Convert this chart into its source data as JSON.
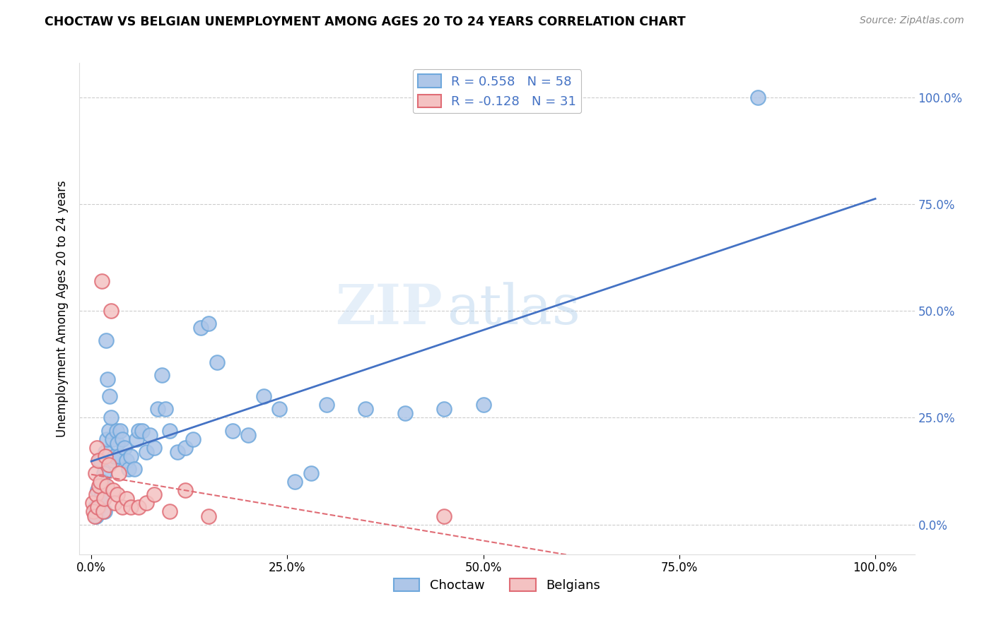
{
  "title": "CHOCTAW VS BELGIAN UNEMPLOYMENT AMONG AGES 20 TO 24 YEARS CORRELATION CHART",
  "source": "Source: ZipAtlas.com",
  "ylabel": "Unemployment Among Ages 20 to 24 years",
  "choctaw_color_face": "#aec6e8",
  "choctaw_color_edge": "#6fa8dc",
  "belgian_color_face": "#f4c2c2",
  "belgian_color_edge": "#e06c75",
  "choctaw_line_color": "#4472c4",
  "belgian_line_color": "#e06c75",
  "ytick_color": "#4472c4",
  "choctaw_R": 0.558,
  "choctaw_N": 58,
  "belgian_R": -0.128,
  "belgian_N": 31,
  "yticks": [
    0.0,
    0.25,
    0.5,
    0.75,
    1.0
  ],
  "ytick_labels": [
    "0.0%",
    "25.0%",
    "50.0%",
    "75.0%",
    "100.0%"
  ],
  "xticks": [
    0.0,
    0.25,
    0.5,
    0.75,
    1.0
  ],
  "xtick_labels": [
    "0.0%",
    "25.0%",
    "50.0%",
    "75.0%",
    "100.0%"
  ],
  "choctaw_x": [
    0.005,
    0.006,
    0.008,
    0.01,
    0.012,
    0.013,
    0.014,
    0.015,
    0.016,
    0.017,
    0.018,
    0.019,
    0.02,
    0.021,
    0.022,
    0.023,
    0.025,
    0.027,
    0.028,
    0.03,
    0.032,
    0.033,
    0.035,
    0.037,
    0.04,
    0.042,
    0.045,
    0.048,
    0.05,
    0.055,
    0.058,
    0.06,
    0.065,
    0.07,
    0.075,
    0.08,
    0.085,
    0.09,
    0.095,
    0.1,
    0.11,
    0.12,
    0.13,
    0.14,
    0.15,
    0.16,
    0.18,
    0.2,
    0.22,
    0.24,
    0.26,
    0.28,
    0.3,
    0.35,
    0.4,
    0.45,
    0.5,
    0.85
  ],
  "choctaw_y": [
    0.04,
    0.02,
    0.08,
    0.04,
    0.15,
    0.07,
    0.1,
    0.06,
    0.12,
    0.03,
    0.17,
    0.43,
    0.2,
    0.34,
    0.22,
    0.3,
    0.25,
    0.2,
    0.15,
    0.16,
    0.22,
    0.19,
    0.16,
    0.22,
    0.2,
    0.18,
    0.15,
    0.13,
    0.16,
    0.13,
    0.2,
    0.22,
    0.22,
    0.17,
    0.21,
    0.18,
    0.27,
    0.35,
    0.27,
    0.22,
    0.17,
    0.18,
    0.2,
    0.46,
    0.47,
    0.38,
    0.22,
    0.21,
    0.3,
    0.27,
    0.1,
    0.12,
    0.28,
    0.27,
    0.26,
    0.27,
    0.28,
    1.0
  ],
  "belgian_x": [
    0.002,
    0.003,
    0.004,
    0.005,
    0.006,
    0.007,
    0.008,
    0.009,
    0.01,
    0.012,
    0.013,
    0.015,
    0.016,
    0.018,
    0.02,
    0.022,
    0.025,
    0.028,
    0.03,
    0.033,
    0.035,
    0.04,
    0.045,
    0.05,
    0.06,
    0.07,
    0.08,
    0.1,
    0.12,
    0.15,
    0.45
  ],
  "belgian_y": [
    0.05,
    0.03,
    0.02,
    0.12,
    0.07,
    0.18,
    0.04,
    0.15,
    0.09,
    0.1,
    0.57,
    0.03,
    0.06,
    0.16,
    0.09,
    0.14,
    0.5,
    0.08,
    0.05,
    0.07,
    0.12,
    0.04,
    0.06,
    0.04,
    0.04,
    0.05,
    0.07,
    0.03,
    0.08,
    0.02,
    0.02
  ]
}
